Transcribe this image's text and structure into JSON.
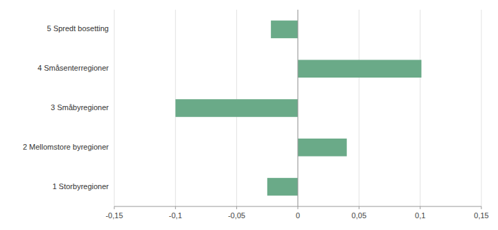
{
  "chart_data": {
    "type": "bar",
    "orientation": "horizontal",
    "categories": [
      "1 Storbyregioner",
      "2 Mellomstore byregioner",
      "3 Småbyregioner",
      "4 Småsenterregioner",
      "5 Spredt bosetting"
    ],
    "values": [
      -0.025,
      0.04,
      -0.1,
      0.101,
      -0.022
    ],
    "color": "#6aaa88",
    "xlim": [
      -0.15,
      0.15
    ],
    "xticks": [
      {
        "value": -0.15,
        "label": "-0,15"
      },
      {
        "value": -0.1,
        "label": "-0,1"
      },
      {
        "value": -0.05,
        "label": "-0,05"
      },
      0,
      {
        "value": 0.05,
        "label": "0,05"
      },
      {
        "value": 0.1,
        "label": "0,1"
      },
      {
        "value": 0.15,
        "label": "0,15"
      }
    ],
    "grid": true
  }
}
